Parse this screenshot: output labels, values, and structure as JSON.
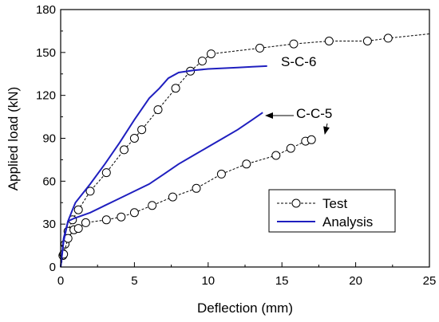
{
  "chart_data": {
    "type": "line",
    "xlabel": "Deflection (mm)",
    "ylabel": "Applied load (kN)",
    "xlim": [
      0,
      25
    ],
    "ylim": [
      0,
      180
    ],
    "xticks": [
      0,
      5,
      10,
      15,
      20,
      25
    ],
    "yticks": [
      0,
      30,
      60,
      90,
      120,
      150,
      180
    ],
    "grid": false,
    "legend_position": "bottom-right",
    "annotations": [
      {
        "text": "S-C-6",
        "series": "Analysis"
      },
      {
        "text": "C-C-5",
        "series": "Analysis",
        "arrow": true
      },
      {
        "text": "",
        "series": "Test",
        "arrow": true
      }
    ],
    "series": [
      {
        "name": "Test",
        "specimen": "S-C-6",
        "style": "dashed-circle",
        "color": "#000000",
        "x": [
          0.0,
          0.15,
          0.3,
          0.5,
          0.8,
          1.2,
          2.0,
          3.1,
          4.3,
          5.0,
          5.5,
          6.6,
          7.8,
          8.8,
          9.6,
          10.2,
          13.5,
          15.8,
          18.2,
          20.8,
          22.2,
          25.0
        ],
        "y": [
          0,
          8,
          16,
          25,
          33,
          40,
          53,
          66,
          82,
          90,
          96,
          110,
          125,
          137,
          144,
          149,
          153,
          156,
          158,
          158,
          160,
          163
        ]
      },
      {
        "name": "Test",
        "specimen": "C-C-5",
        "style": "dashed-circle",
        "color": "#000000",
        "x": [
          0.0,
          0.2,
          0.5,
          0.9,
          1.2,
          1.7,
          3.1,
          4.1,
          5.0,
          6.2,
          7.6,
          9.2,
          10.9,
          12.6,
          14.6,
          15.6,
          16.6,
          17.0
        ],
        "y": [
          0,
          9,
          20,
          26,
          27,
          31,
          33,
          35,
          38,
          43,
          49,
          55,
          65,
          72,
          78,
          83,
          88,
          89
        ]
      },
      {
        "name": "Analysis",
        "specimen": "S-C-6",
        "style": "solid",
        "color": "#1f1fbf",
        "x": [
          0.0,
          0.2,
          0.5,
          0.8,
          1.0,
          2.0,
          3.0,
          4.0,
          5.0,
          6.0,
          6.7,
          7.3,
          8.0,
          9.0,
          10.0,
          11.0,
          12.0,
          13.0,
          14.0
        ],
        "y": [
          0,
          18,
          32,
          40,
          45,
          58,
          72,
          87,
          103,
          118,
          125,
          132,
          136,
          137.5,
          138.5,
          139,
          139.5,
          140,
          140.5
        ]
      },
      {
        "name": "Analysis",
        "specimen": "C-C-5",
        "style": "solid",
        "color": "#1f1fbf",
        "x": [
          0.0,
          0.2,
          0.5,
          0.9,
          2.0,
          3.0,
          4.0,
          5.0,
          6.0,
          7.0,
          8.0,
          9.0,
          10.0,
          11.0,
          12.0,
          13.0,
          13.7
        ],
        "y": [
          0,
          20,
          32,
          34,
          38,
          43,
          48,
          53,
          58,
          65,
          72,
          78,
          84,
          90,
          96,
          103,
          108
        ]
      }
    ]
  },
  "legend": {
    "items": [
      {
        "label": "Test",
        "style": "dashed-circle"
      },
      {
        "label": "Analysis",
        "style": "solid"
      }
    ]
  },
  "labels": {
    "sc6": "S-C-6",
    "cc5": "C-C-5"
  }
}
